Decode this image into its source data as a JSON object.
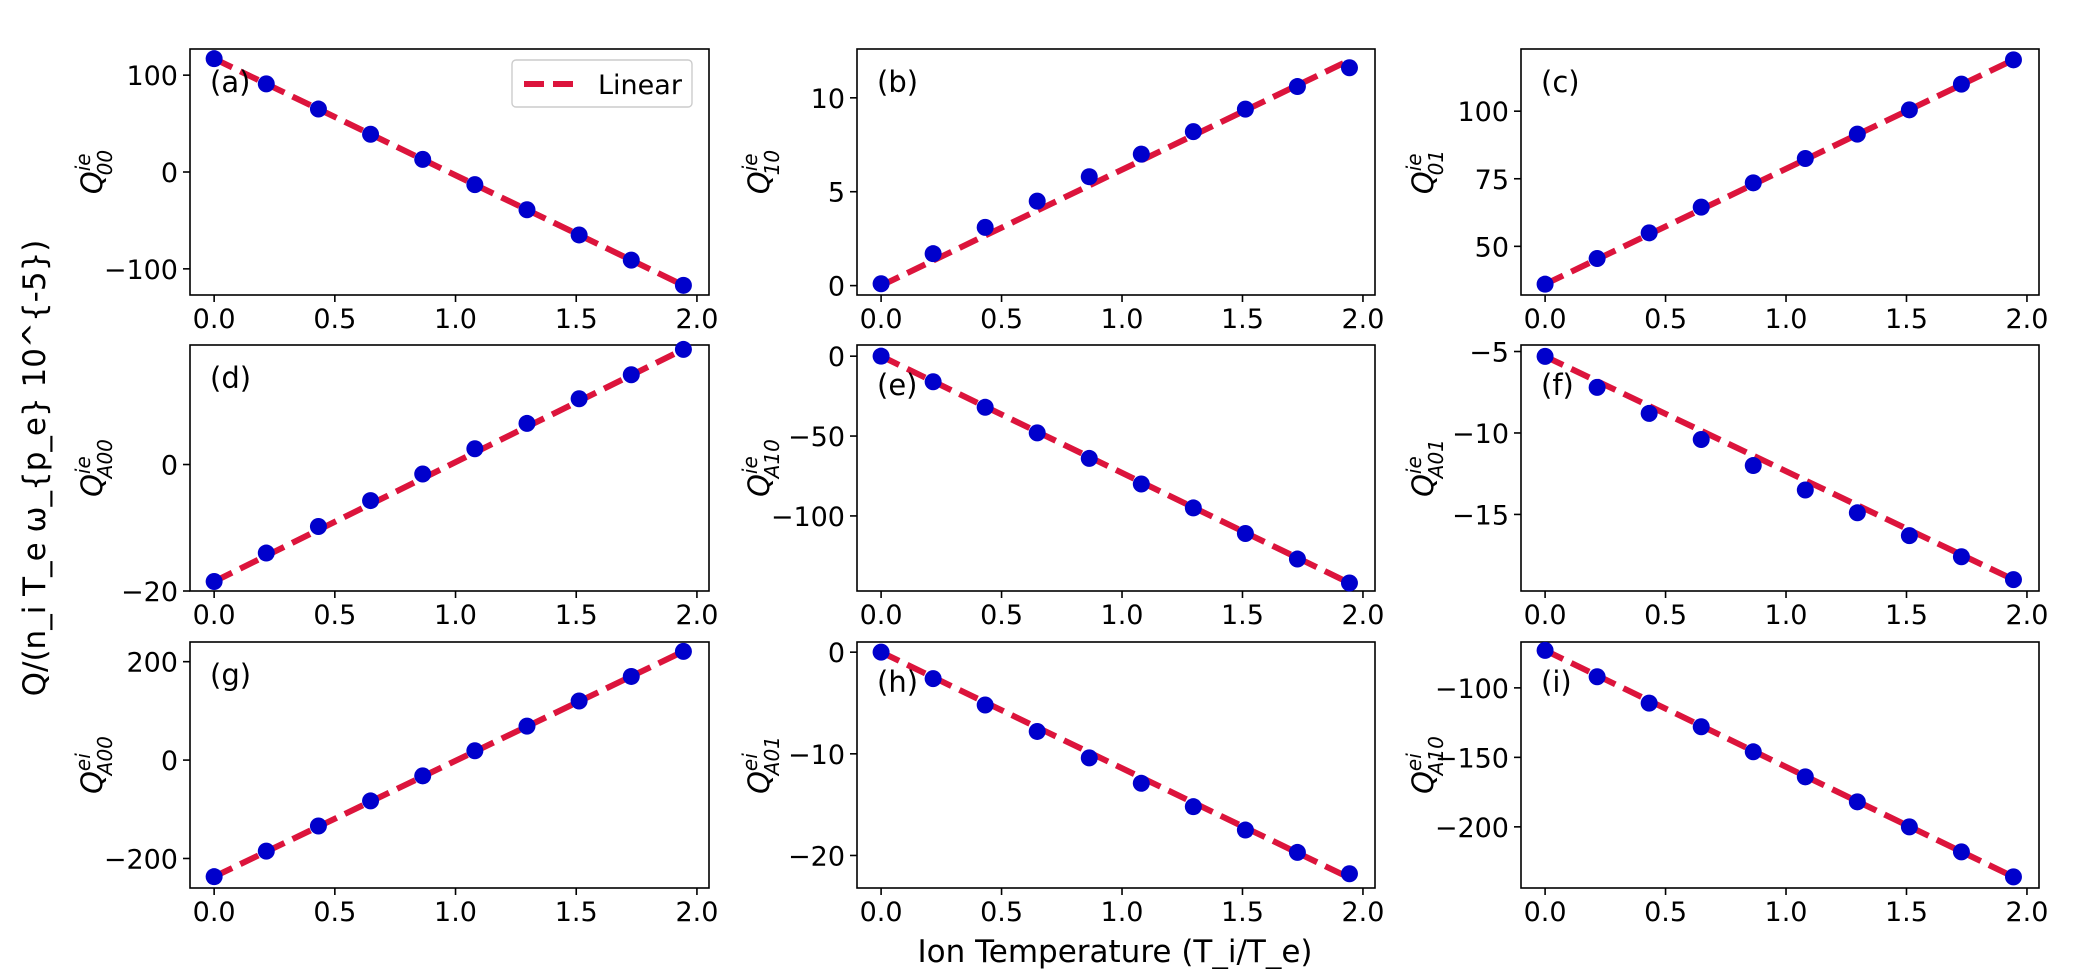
{
  "figure": {
    "xlabel": "Ion Temperature (T_i/T_e)",
    "ylabel": "Q/(n_i T_e ω_{p_e} 10^{-5})",
    "legend_label": "Linear",
    "colors": {
      "marker": "#0000cc",
      "fit_line": "#dc143c",
      "axes": "#000000",
      "background": "#ffffff"
    }
  },
  "chart_data": [
    {
      "type": "scatter",
      "panel_label": "(a)",
      "ylabel_symbol": "Q",
      "ylabel_super": "ie",
      "ylabel_sub": "00",
      "legend": "top-right",
      "label_pos": "top-left",
      "x": [
        0.0,
        0.216,
        0.432,
        0.648,
        0.864,
        1.08,
        1.296,
        1.512,
        1.728,
        1.944
      ],
      "y": [
        117,
        91,
        65,
        39,
        13,
        -13,
        -39,
        -65,
        -91,
        -117
      ],
      "fit": [
        117,
        -117
      ],
      "xlim": [
        -0.1,
        2.05
      ],
      "ylim": [
        -127,
        127
      ],
      "xticks": [
        0.0,
        0.5,
        1.0,
        1.5,
        2.0
      ],
      "xtick_labels": [
        "0.0",
        "0.5",
        "1.0",
        "1.5",
        "2.0"
      ],
      "yticks": [
        -100,
        0,
        100
      ],
      "ytick_labels": [
        "−100",
        "0",
        "100"
      ]
    },
    {
      "type": "scatter",
      "panel_label": "(b)",
      "ylabel_symbol": "Q",
      "ylabel_super": "ie",
      "ylabel_sub": "10",
      "label_pos": "top-left",
      "x": [
        0.0,
        0.216,
        0.432,
        0.648,
        0.864,
        1.08,
        1.296,
        1.512,
        1.728,
        1.944
      ],
      "y": [
        0.1,
        1.7,
        3.1,
        4.5,
        5.8,
        7.0,
        8.2,
        9.4,
        10.6,
        11.6
      ],
      "fit": [
        0.0,
        12.0
      ],
      "xlim": [
        -0.1,
        2.05
      ],
      "ylim": [
        -0.5,
        12.6
      ],
      "xticks": [
        0.0,
        0.5,
        1.0,
        1.5,
        2.0
      ],
      "xtick_labels": [
        "0.0",
        "0.5",
        "1.0",
        "1.5",
        "2.0"
      ],
      "yticks": [
        0,
        5,
        10
      ],
      "ytick_labels": [
        "0",
        "5",
        "10"
      ]
    },
    {
      "type": "scatter",
      "panel_label": "(c)",
      "ylabel_symbol": "Q",
      "ylabel_super": "ie",
      "ylabel_sub": "01",
      "label_pos": "top-left",
      "x": [
        0.0,
        0.216,
        0.432,
        0.648,
        0.864,
        1.08,
        1.296,
        1.512,
        1.728,
        1.944
      ],
      "y": [
        36,
        45.5,
        55,
        64.5,
        73.5,
        82.5,
        91.5,
        100.5,
        110,
        119
      ],
      "fit": [
        36,
        119
      ],
      "xlim": [
        -0.1,
        2.05
      ],
      "ylim": [
        32,
        123
      ],
      "xticks": [
        0.0,
        0.5,
        1.0,
        1.5,
        2.0
      ],
      "xtick_labels": [
        "0.0",
        "0.5",
        "1.0",
        "1.5",
        "2.0"
      ],
      "yticks": [
        50,
        75,
        100
      ],
      "ytick_labels": [
        "50",
        "75",
        "100"
      ]
    },
    {
      "type": "scatter",
      "panel_label": "(d)",
      "ylabel_symbol": "Q",
      "ylabel_super": "ie",
      "ylabel_sub": "A00",
      "label_pos": "top-left",
      "x": [
        0.0,
        0.216,
        0.432,
        0.648,
        0.864,
        1.08,
        1.296,
        1.512,
        1.728,
        1.944
      ],
      "y": [
        -18.5,
        -14,
        -9.8,
        -5.7,
        -1.5,
        2.5,
        6.5,
        10.4,
        14.2,
        18.2
      ],
      "fit": [
        -18.5,
        18.2
      ],
      "xlim": [
        -0.1,
        2.05
      ],
      "ylim": [
        -20,
        18.9
      ],
      "xticks": [
        0.0,
        0.5,
        1.0,
        1.5,
        2.0
      ],
      "xtick_labels": [
        "0.0",
        "0.5",
        "1.0",
        "1.5",
        "2.0"
      ],
      "yticks": [
        -20,
        0
      ],
      "ytick_labels": [
        "−20",
        "0"
      ]
    },
    {
      "type": "scatter",
      "panel_label": "(e)",
      "ylabel_symbol": "Q",
      "ylabel_super": "ie",
      "ylabel_sub": "A10",
      "label_pos": "top-left-low",
      "x": [
        0.0,
        0.216,
        0.432,
        0.648,
        0.864,
        1.08,
        1.296,
        1.512,
        1.728,
        1.944
      ],
      "y": [
        0,
        -16,
        -32,
        -48,
        -64,
        -80,
        -95,
        -111,
        -127,
        -142
      ],
      "fit": [
        0,
        -142
      ],
      "xlim": [
        -0.1,
        2.05
      ],
      "ylim": [
        -147,
        7
      ],
      "xticks": [
        0.0,
        0.5,
        1.0,
        1.5,
        2.0
      ],
      "xtick_labels": [
        "0.0",
        "0.5",
        "1.0",
        "1.5",
        "2.0"
      ],
      "yticks": [
        -100,
        -50,
        0
      ],
      "ytick_labels": [
        "−100",
        "−50",
        "0"
      ]
    },
    {
      "type": "scatter",
      "panel_label": "(f)",
      "ylabel_symbol": "Q",
      "ylabel_super": "ie",
      "ylabel_sub": "A01",
      "label_pos": "top-left-low",
      "x": [
        0.0,
        0.216,
        0.432,
        0.648,
        0.864,
        1.08,
        1.296,
        1.512,
        1.728,
        1.944
      ],
      "y": [
        -5.3,
        -7.2,
        -8.8,
        -10.4,
        -12.0,
        -13.5,
        -14.9,
        -16.3,
        -17.6,
        -19.0
      ],
      "fit": [
        -5.3,
        -19.0
      ],
      "xlim": [
        -0.1,
        2.05
      ],
      "ylim": [
        -19.7,
        -4.6
      ],
      "xticks": [
        0.0,
        0.5,
        1.0,
        1.5,
        2.0
      ],
      "xtick_labels": [
        "0.0",
        "0.5",
        "1.0",
        "1.5",
        "2.0"
      ],
      "yticks": [
        -15,
        -10,
        -5
      ],
      "ytick_labels": [
        "−15",
        "−10",
        "−5"
      ]
    },
    {
      "type": "scatter",
      "panel_label": "(g)",
      "ylabel_symbol": "Q",
      "ylabel_super": "ei",
      "ylabel_sub": "A00",
      "label_pos": "top-left",
      "x": [
        0.0,
        0.216,
        0.432,
        0.648,
        0.864,
        1.08,
        1.296,
        1.512,
        1.728,
        1.944
      ],
      "y": [
        -237,
        -185,
        -134,
        -83,
        -32,
        19,
        69,
        120,
        170,
        221
      ],
      "fit": [
        -237,
        221
      ],
      "xlim": [
        -0.1,
        2.05
      ],
      "ylim": [
        -260,
        240
      ],
      "xticks": [
        0.0,
        0.5,
        1.0,
        1.5,
        2.0
      ],
      "xtick_labels": [
        "0.0",
        "0.5",
        "1.0",
        "1.5",
        "2.0"
      ],
      "yticks": [
        -200,
        0,
        200
      ],
      "ytick_labels": [
        "−200",
        "0",
        "200"
      ]
    },
    {
      "type": "scatter",
      "panel_label": "(h)",
      "ylabel_symbol": "Q",
      "ylabel_super": "ei",
      "ylabel_sub": "A01",
      "label_pos": "top-left-low",
      "x": [
        0.0,
        0.216,
        0.432,
        0.648,
        0.864,
        1.08,
        1.296,
        1.512,
        1.728,
        1.944
      ],
      "y": [
        0,
        -2.6,
        -5.2,
        -7.8,
        -10.4,
        -12.9,
        -15.2,
        -17.5,
        -19.7,
        -21.8
      ],
      "fit": [
        0,
        -22.2
      ],
      "xlim": [
        -0.1,
        2.05
      ],
      "ylim": [
        -23.2,
        1.0
      ],
      "xticks": [
        0.0,
        0.5,
        1.0,
        1.5,
        2.0
      ],
      "xtick_labels": [
        "0.0",
        "0.5",
        "1.0",
        "1.5",
        "2.0"
      ],
      "yticks": [
        -20,
        -10,
        0
      ],
      "ytick_labels": [
        "−20",
        "−10",
        "0"
      ]
    },
    {
      "type": "scatter",
      "panel_label": "(i)",
      "ylabel_symbol": "Q",
      "ylabel_super": "ei",
      "ylabel_sub": "A10",
      "label_pos": "top-left-low",
      "x": [
        0.0,
        0.216,
        0.432,
        0.648,
        0.864,
        1.08,
        1.296,
        1.512,
        1.728,
        1.944
      ],
      "y": [
        -73,
        -92,
        -111,
        -128,
        -146,
        -164,
        -182,
        -200,
        -218,
        -236
      ],
      "fit": [
        -73,
        -236
      ],
      "xlim": [
        -0.1,
        2.05
      ],
      "ylim": [
        -244,
        -67
      ],
      "xticks": [
        0.0,
        0.5,
        1.0,
        1.5,
        2.0
      ],
      "xtick_labels": [
        "0.0",
        "0.5",
        "1.0",
        "1.5",
        "2.0"
      ],
      "yticks": [
        -200,
        -150,
        -100
      ],
      "ytick_labels": [
        "−200",
        "−150",
        "−100"
      ]
    }
  ]
}
